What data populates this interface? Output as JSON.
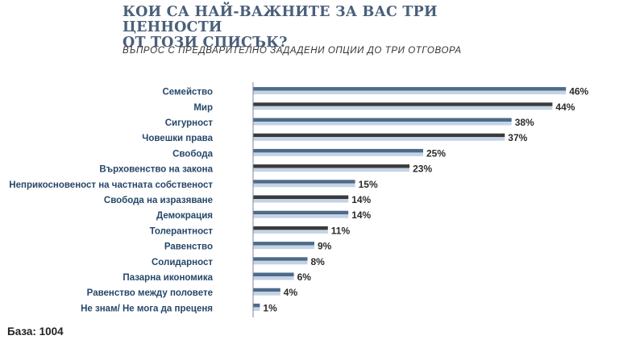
{
  "page": {
    "title": "КОИ СА НАЙ-ВАЖНИТЕ ЗА ВАС ТРИ ЦЕННОСТИ\nОТ ТОЗИ СПИСЪК?",
    "subtitle": "ВЪПРОС С ПРЕДВАРИТЕЛНО ЗАДАДЕНИ ОПЦИИ ДО ТРИ ОТГОВОРА",
    "base": "База: 1004"
  },
  "colors": {
    "bar_blue": "#4e6a8a",
    "bar_dark": "#3a3a3a",
    "bar_light": "#c4d3e4",
    "axis": "#7d8794",
    "value_text": "#2b2b2b",
    "label_text": "#26476b"
  },
  "chart_data": {
    "type": "bar",
    "orientation": "horizontal",
    "categories": [
      "Семейство",
      "Мир",
      "Сигурност",
      "Човешки права",
      "Свобода",
      "Върховенство на закона",
      "Неприкосновеност на частната собственост",
      "Свобода на изразяване",
      "Демокрация",
      "Толерантност",
      "Равенство",
      "Солидарност",
      "Пазарна икономика",
      "Равенство между половете",
      "Не знам/ Не мога да преценя"
    ],
    "values": [
      46,
      44,
      38,
      37,
      25,
      23,
      15,
      14,
      14,
      11,
      9,
      8,
      6,
      4,
      1
    ],
    "value_labels": [
      "46%",
      "44%",
      "38%",
      "37%",
      "25%",
      "23%",
      "15%",
      "14%",
      "14%",
      "11%",
      "9%",
      "8%",
      "6%",
      "4%",
      "1%"
    ],
    "bar_style": [
      "blue",
      "dark",
      "blue",
      "dark",
      "blue",
      "dark",
      "blue",
      "dark",
      "blue",
      "dark",
      "blue",
      "blue",
      "blue",
      "blue",
      "blue"
    ],
    "unit": "%",
    "xlim": [
      0,
      50
    ],
    "grid": false,
    "legend": "none"
  }
}
